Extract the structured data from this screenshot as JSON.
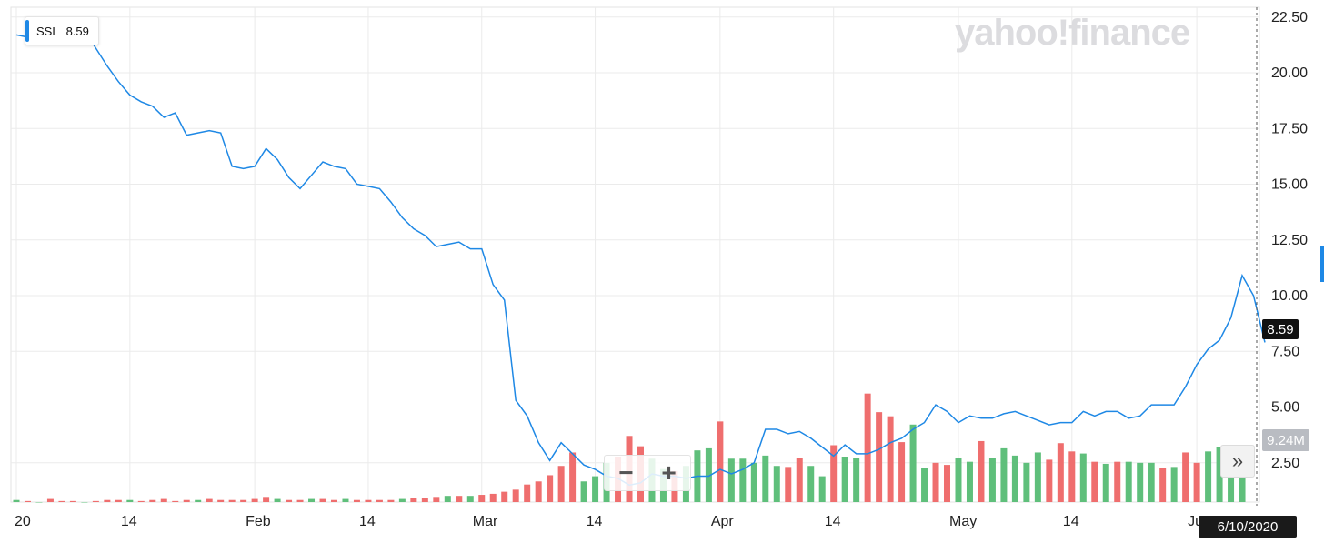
{
  "legend": {
    "symbol": "SSL",
    "value": "8.59"
  },
  "logo_text": "yahoo!finance",
  "zoom": {
    "minus": "−",
    "plus": "+"
  },
  "scroll_label": "»",
  "current_price_label": "8.59",
  "volume_label": "9.24M",
  "crosshair_date": "6/10/2020",
  "colors": {
    "line": "#1e88e5",
    "vol_up": "#5fbf7b",
    "vol_down": "#ef6e6e",
    "grid": "#ebebeb"
  },
  "chart_data": {
    "type": "line",
    "title": "",
    "xlabel": "",
    "ylabel": "",
    "ylim": [
      0,
      23
    ],
    "yticks": [
      "22.50",
      "20.00",
      "17.50",
      "15.00",
      "12.50",
      "10.00",
      "7.50",
      "5.00",
      "2.50"
    ],
    "ytick_values": [
      22.5,
      20,
      17.5,
      15,
      12.5,
      10,
      7.5,
      5,
      2.5
    ],
    "xticks": [
      "20",
      "14",
      "Feb",
      "14",
      "Mar",
      "14",
      "Apr",
      "14",
      "May",
      "14",
      "Jun"
    ],
    "xtick_indices": [
      0,
      10,
      21,
      31,
      41,
      51,
      62,
      72,
      83,
      93,
      104
    ],
    "current_price": 8.59,
    "series": [
      {
        "name": "SSL",
        "values": [
          21.7,
          21.6,
          21.8,
          21.9,
          21.5,
          21.7,
          21.9,
          21.1,
          20.3,
          19.6,
          19.0,
          18.7,
          18.5,
          18.0,
          18.2,
          17.2,
          17.3,
          17.4,
          17.3,
          15.8,
          15.7,
          15.8,
          16.6,
          16.1,
          15.3,
          14.8,
          15.4,
          16.0,
          15.8,
          15.7,
          15.0,
          14.9,
          14.8,
          14.2,
          13.5,
          13.0,
          12.7,
          12.2,
          12.3,
          12.4,
          12.1,
          12.1,
          10.5,
          9.8,
          5.3,
          4.6,
          3.4,
          2.6,
          3.4,
          2.9,
          2.4,
          2.2,
          1.9,
          1.8,
          1.5,
          1.6,
          2.0,
          1.9,
          1.9,
          1.8,
          1.9,
          1.9,
          2.2,
          2.0,
          2.2,
          2.5,
          4.0,
          4.0,
          3.8,
          3.9,
          3.6,
          3.2,
          2.8,
          3.3,
          2.9,
          2.9,
          3.1,
          3.4,
          3.6,
          4.0,
          4.3,
          5.1,
          4.8,
          4.3,
          4.6,
          4.5,
          4.5,
          4.7,
          4.8,
          4.6,
          4.4,
          4.2,
          4.3,
          4.3,
          4.8,
          4.6,
          4.8,
          4.8,
          4.5,
          4.6,
          5.1,
          5.1,
          5.1,
          5.9,
          6.9,
          7.6,
          8.0,
          9.0,
          10.9,
          10.0,
          7.9
        ]
      }
    ],
    "volume": {
      "label": "9.24M",
      "values": [
        0.02,
        0.01,
        0.0,
        0.03,
        0.01,
        0.01,
        0.0,
        0.01,
        0.02,
        0.02,
        0.02,
        0.01,
        0.02,
        0.03,
        0.01,
        0.02,
        0.02,
        0.03,
        0.02,
        0.02,
        0.02,
        0.03,
        0.05,
        0.03,
        0.02,
        0.02,
        0.03,
        0.03,
        0.02,
        0.03,
        0.02,
        0.02,
        0.02,
        0.02,
        0.03,
        0.04,
        0.04,
        0.05,
        0.06,
        0.06,
        0.06,
        0.07,
        0.08,
        0.1,
        0.12,
        0.17,
        0.2,
        0.26,
        0.35,
        0.48,
        0.2,
        0.25,
        0.38,
        0.44,
        0.64,
        0.54,
        0.42,
        0.32,
        0.3,
        0.35,
        0.5,
        0.52,
        0.78,
        0.42,
        0.42,
        0.38,
        0.45,
        0.35,
        0.34,
        0.43,
        0.35,
        0.25,
        0.55,
        0.44,
        0.43,
        1.05,
        0.87,
        0.83,
        0.58,
        0.75,
        0.33,
        0.38,
        0.36,
        0.43,
        0.39,
        0.59,
        0.43,
        0.52,
        0.45,
        0.38,
        0.48,
        0.41,
        0.57,
        0.49,
        0.47,
        0.39,
        0.37,
        0.39,
        0.39,
        0.38,
        0.38,
        0.33,
        0.34,
        0.48,
        0.38,
        0.49,
        0.53,
        0.4,
        0.24
      ],
      "up": [
        1,
        0,
        1,
        0,
        0,
        0,
        1,
        0,
        0,
        0,
        1,
        0,
        0,
        0,
        0,
        0,
        1,
        0,
        0,
        0,
        0,
        0,
        0,
        1,
        0,
        0,
        1,
        0,
        0,
        1,
        0,
        0,
        0,
        0,
        1,
        0,
        0,
        0,
        1,
        0,
        1,
        0,
        0,
        0,
        0,
        0,
        0,
        0,
        0,
        0,
        1,
        1,
        1,
        0,
        0,
        0,
        1,
        1,
        0,
        1,
        1,
        1,
        0,
        1,
        1,
        1,
        1,
        1,
        0,
        0,
        1,
        1,
        0,
        1,
        1,
        0,
        0,
        0,
        0,
        1,
        1,
        0,
        0,
        1,
        1,
        0,
        1,
        1,
        1,
        1,
        1,
        0,
        0,
        0,
        1,
        0,
        1,
        0,
        1,
        1,
        1,
        0,
        1,
        0,
        0,
        1,
        1,
        1,
        1,
        1,
        1,
        1,
        0
      ],
      "extra_tail": [
        0.82,
        0.73,
        0.94,
        0.8,
        0.62,
        0.55,
        0.43,
        0.78
      ],
      "extra_tail_up": [
        1,
        1,
        1,
        1,
        1,
        0,
        0,
        1
      ]
    }
  }
}
